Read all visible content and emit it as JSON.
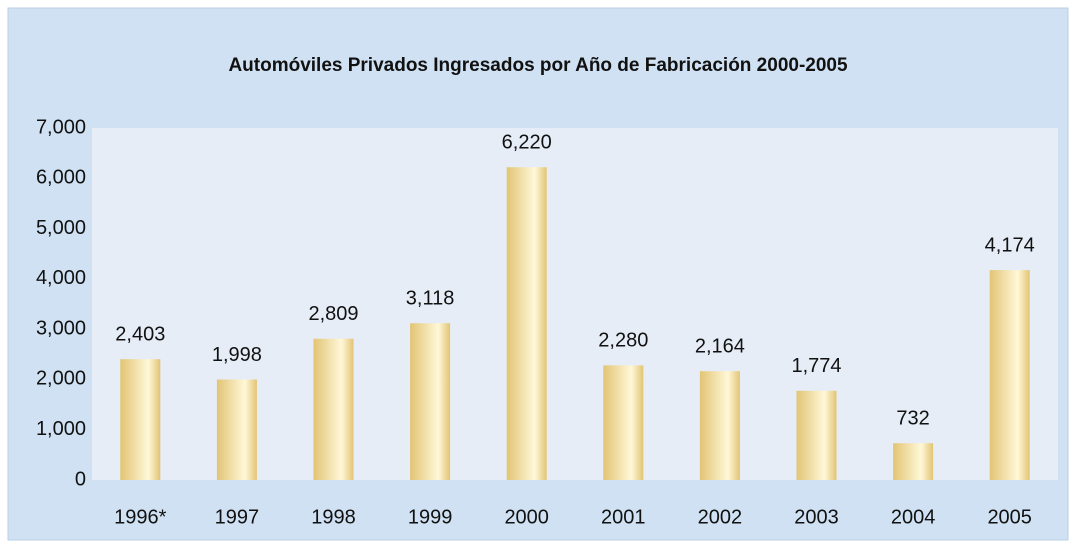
{
  "chart_data": {
    "type": "bar",
    "title": "Automóviles Privados Ingresados por Año de Fabricación 2000-2005",
    "categories": [
      "1996*",
      "1997",
      "1998",
      "1999",
      "2000",
      "2001",
      "2002",
      "2003",
      "2004",
      "2005"
    ],
    "values": [
      2403,
      1998,
      2809,
      3118,
      6220,
      2280,
      2164,
      1774,
      732,
      4174
    ],
    "value_labels": [
      "2,403",
      "1,998",
      "2,809",
      "3,118",
      "6,220",
      "2,280",
      "2,164",
      "1,774",
      "732",
      "4,174"
    ],
    "color": "#e2c474",
    "ylim": [
      0,
      7000
    ],
    "yticks": [
      0,
      {
        "value": 1000,
        "label": "1,000"
      },
      {
        "value": 2000,
        "label": "2,000"
      },
      {
        "value": 3000,
        "label": "3,000"
      },
      {
        "value": 4000,
        "label": "4,000"
      },
      {
        "value": 5000,
        "label": "5,000"
      },
      {
        "value": 6000,
        "label": "6,000"
      },
      {
        "value": 7000,
        "label": "7,000"
      }
    ],
    "grid": false
  }
}
